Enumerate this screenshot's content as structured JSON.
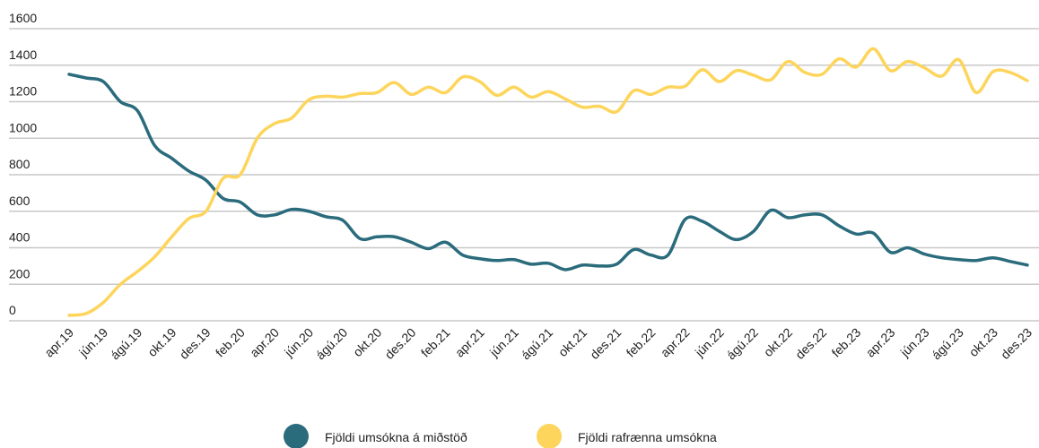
{
  "chart_data": {
    "type": "line",
    "categories": [
      "apr.19",
      null,
      "jún.19",
      null,
      "ágú.19",
      null,
      "okt.19",
      null,
      "des.19",
      null,
      "feb.20",
      null,
      "apr.20",
      null,
      "jún.20",
      null,
      "ágú.20",
      null,
      "okt.20",
      null,
      "des.20",
      null,
      "feb.21",
      null,
      "apr.21",
      null,
      "jún.21",
      null,
      "ágú.21",
      null,
      "okt.21",
      null,
      "des.21",
      null,
      "feb.22",
      null,
      "apr.22",
      null,
      "jún.22",
      null,
      "ágú.22",
      null,
      "okt.22",
      null,
      "des.22",
      null,
      "feb.23",
      null,
      "apr.23",
      null,
      "jún.23",
      null,
      "ágú.23",
      null,
      "okt.23",
      null,
      "des.23"
    ],
    "series": [
      {
        "name": "Fjöldi umsókna á miðstöð",
        "color": "#2a6b7c",
        "values": [
          1350,
          1330,
          1310,
          1200,
          1150,
          960,
          890,
          820,
          770,
          670,
          650,
          580,
          580,
          610,
          600,
          570,
          550,
          450,
          460,
          460,
          430,
          395,
          430,
          360,
          340,
          330,
          335,
          310,
          315,
          280,
          305,
          300,
          310,
          390,
          360,
          360,
          555,
          545,
          490,
          445,
          490,
          605,
          565,
          580,
          580,
          520,
          475,
          480,
          375,
          400,
          365,
          345,
          335,
          330,
          345,
          325,
          305
        ]
      },
      {
        "name": "Fjöldi rafrænna umsókna",
        "color": "#fdd55c",
        "values": [
          30,
          40,
          100,
          200,
          270,
          350,
          460,
          560,
          600,
          780,
          800,
          1000,
          1080,
          1110,
          1210,
          1230,
          1225,
          1245,
          1250,
          1305,
          1240,
          1280,
          1250,
          1335,
          1310,
          1235,
          1280,
          1225,
          1255,
          1215,
          1170,
          1175,
          1145,
          1260,
          1240,
          1280,
          1285,
          1375,
          1310,
          1370,
          1345,
          1320,
          1420,
          1360,
          1350,
          1435,
          1390,
          1490,
          1370,
          1420,
          1385,
          1340,
          1430,
          1250,
          1365,
          1360,
          1315
        ]
      }
    ],
    "ylim": [
      0,
      1600
    ],
    "yticks": [
      0,
      200,
      400,
      600,
      800,
      1000,
      1200,
      1400,
      1600
    ],
    "grid": true
  }
}
